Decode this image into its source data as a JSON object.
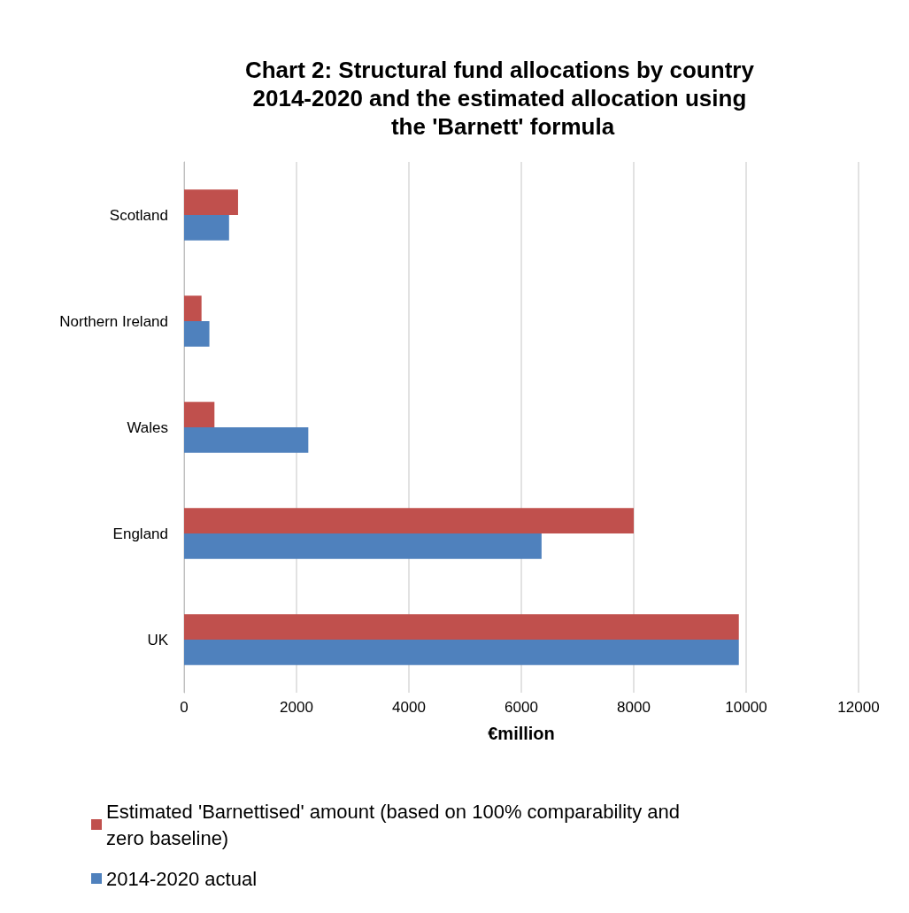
{
  "chart_data": {
    "type": "bar",
    "orientation": "horizontal",
    "title": "Chart 2: Structural fund allocations by country 2014-2020 and the estimated allocation using the 'Barnett' formula",
    "xlabel": "€million",
    "categories": [
      "Scotland",
      "Northern Ireland",
      "Wales",
      "England",
      "UK"
    ],
    "series": [
      {
        "name": "Estimated 'Barnettised' amount (based on 100% comparability and zero baseline)",
        "color": "#c0504d",
        "values": [
          960,
          310,
          540,
          8000,
          9870
        ]
      },
      {
        "name": "2014-2020 actual",
        "color": "#4f81bd",
        "values": [
          800,
          450,
          2210,
          6360,
          9870
        ]
      }
    ],
    "xlim": [
      0,
      12000
    ],
    "xticks": [
      0,
      2000,
      4000,
      6000,
      8000,
      10000,
      12000
    ],
    "grid": "x",
    "legend": "bottom"
  }
}
